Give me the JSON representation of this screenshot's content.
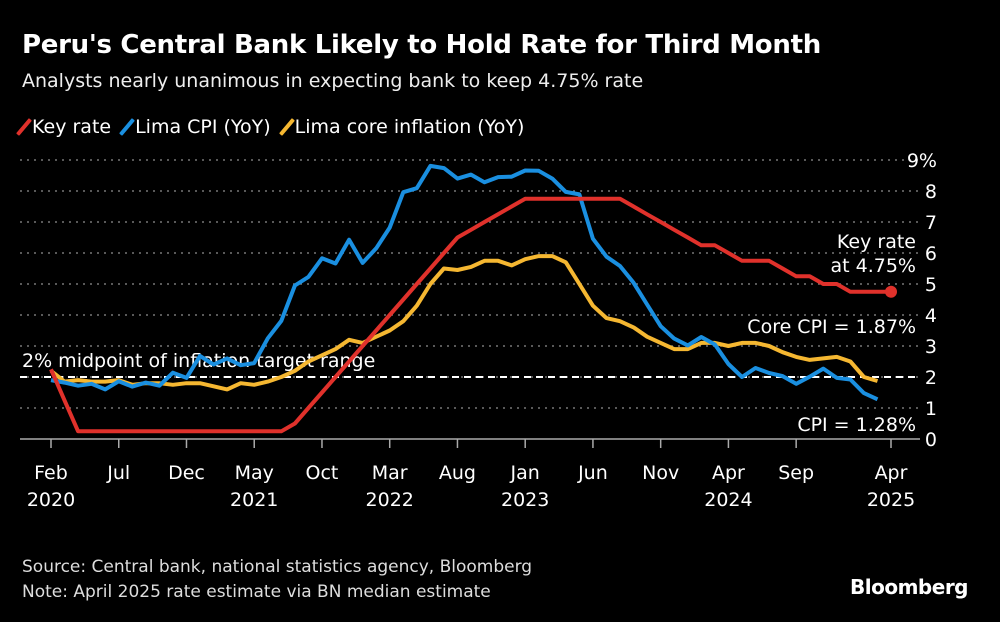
{
  "title": "Peru's Central Bank Likely to Hold Rate for Third Month",
  "subtitle": "Analysts nearly unanimous in expecting bank to keep 4.75% rate",
  "source": "Source: Central bank, national statistics agency, Bloomberg",
  "note": "Note: April 2025 rate estimate via BN median estimate",
  "logo": "Bloomberg",
  "chart_data": {
    "type": "line",
    "x_start": "2020-02",
    "x_end": "2025-04",
    "ylim": [
      0,
      9
    ],
    "yticks": [
      "0",
      "1",
      "2",
      "3",
      "4",
      "5",
      "6",
      "7",
      "8",
      "9%"
    ],
    "xticks": [
      {
        "label": "Feb",
        "year": "2020",
        "month": "2020-02"
      },
      {
        "label": "Jul",
        "month": "2020-07"
      },
      {
        "label": "Dec",
        "month": "2020-12"
      },
      {
        "label": "May",
        "year": "2021",
        "month": "2021-05"
      },
      {
        "label": "Oct",
        "month": "2021-10"
      },
      {
        "label": "Mar",
        "year": "2022",
        "month": "2022-03"
      },
      {
        "label": "Aug",
        "month": "2022-08"
      },
      {
        "label": "Jan",
        "year": "2023",
        "month": "2023-01"
      },
      {
        "label": "Jun",
        "month": "2023-06"
      },
      {
        "label": "Nov",
        "month": "2023-11"
      },
      {
        "label": "Apr",
        "year": "2024",
        "month": "2024-04"
      },
      {
        "label": "Sep",
        "month": "2024-09"
      },
      {
        "label": "Apr",
        "year": "2025",
        "month": "2025-04"
      }
    ],
    "grid": true,
    "legend_position": "top-left",
    "series": [
      {
        "name": "Key rate",
        "color": "#e0312b",
        "start": "2020-02",
        "values": [
          2.25,
          1.25,
          0.25,
          0.25,
          0.25,
          0.25,
          0.25,
          0.25,
          0.25,
          0.25,
          0.25,
          0.25,
          0.25,
          0.25,
          0.25,
          0.25,
          0.25,
          0.25,
          0.5,
          1.0,
          1.5,
          2.0,
          2.5,
          3.0,
          3.5,
          4.0,
          4.5,
          5.0,
          5.5,
          6.0,
          6.5,
          6.75,
          7.0,
          7.25,
          7.5,
          7.75,
          7.75,
          7.75,
          7.75,
          7.75,
          7.75,
          7.75,
          7.75,
          7.5,
          7.25,
          7.0,
          6.75,
          6.5,
          6.25,
          6.25,
          6.0,
          5.75,
          5.75,
          5.75,
          5.5,
          5.25,
          5.25,
          5.0,
          5.0,
          4.75,
          4.75,
          4.75,
          4.75
        ]
      },
      {
        "name": "Lima CPI (YoY)",
        "color": "#1a8fe0",
        "start": "2020-02",
        "values": [
          1.9,
          1.82,
          1.72,
          1.78,
          1.6,
          1.86,
          1.69,
          1.82,
          1.72,
          2.14,
          1.97,
          2.68,
          2.4,
          2.6,
          2.38,
          2.45,
          3.25,
          3.81,
          4.95,
          5.23,
          5.83,
          5.66,
          6.43,
          5.68,
          6.15,
          6.82,
          7.96,
          8.09,
          8.81,
          8.74,
          8.4,
          8.53,
          8.28,
          8.45,
          8.46,
          8.66,
          8.65,
          8.4,
          7.97,
          7.89,
          6.46,
          5.88,
          5.58,
          5.04,
          4.34,
          3.64,
          3.24,
          3.02,
          3.29,
          3.05,
          2.42,
          2.0,
          2.29,
          2.13,
          2.03,
          1.78,
          2.01,
          2.27,
          1.97,
          1.92,
          1.48,
          1.28
        ]
      },
      {
        "name": "Lima core inflation (YoY)",
        "color": "#f5b731",
        "start": "2020-02",
        "values": [
          2.2,
          1.85,
          1.9,
          1.85,
          1.85,
          1.9,
          1.75,
          1.8,
          1.8,
          1.75,
          1.8,
          1.8,
          1.7,
          1.6,
          1.8,
          1.75,
          1.85,
          2.0,
          2.2,
          2.5,
          2.7,
          2.9,
          3.2,
          3.1,
          3.3,
          3.5,
          3.8,
          4.3,
          5.0,
          5.5,
          5.45,
          5.55,
          5.75,
          5.75,
          5.6,
          5.8,
          5.9,
          5.9,
          5.7,
          5.0,
          4.3,
          3.9,
          3.8,
          3.6,
          3.3,
          3.1,
          2.9,
          2.9,
          3.1,
          3.1,
          3.0,
          3.1,
          3.1,
          3.0,
          2.8,
          2.65,
          2.55,
          2.6,
          2.65,
          2.5,
          2.0,
          1.87
        ]
      }
    ],
    "reference_line": {
      "value": 2,
      "label": "2% midpoint of inflation target range"
    },
    "annotations": {
      "key_rate": [
        "Key rate",
        "at 4.75%"
      ],
      "core": "Core CPI = 1.87%",
      "cpi": "CPI = 1.28%"
    }
  }
}
